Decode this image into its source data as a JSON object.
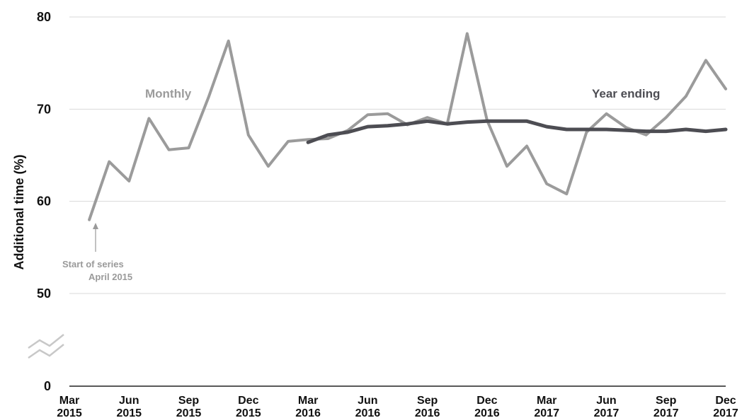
{
  "chart_data": {
    "type": "line",
    "ylabel": "Additional time (%)",
    "ylim": [
      0,
      80
    ],
    "y_axis_break": [
      0,
      50
    ],
    "y_ticks": [
      "0",
      "50",
      "60",
      "70",
      "80"
    ],
    "grid": true,
    "x_ticks": [
      {
        "month": "Mar",
        "year": "2015"
      },
      {
        "month": "Jun",
        "year": "2015"
      },
      {
        "month": "Sep",
        "year": "2015"
      },
      {
        "month": "Dec",
        "year": "2015"
      },
      {
        "month": "Mar",
        "year": "2016"
      },
      {
        "month": "Jun",
        "year": "2016"
      },
      {
        "month": "Sep",
        "year": "2016"
      },
      {
        "month": "Dec",
        "year": "2016"
      },
      {
        "month": "Mar",
        "year": "2017"
      },
      {
        "month": "Jun",
        "year": "2017"
      },
      {
        "month": "Sep",
        "year": "2017"
      },
      {
        "month": "Dec",
        "year": "2017"
      }
    ],
    "series": [
      {
        "name": "Monthly",
        "color": "#9b9b9b",
        "x": [
          "2015-04",
          "2015-05",
          "2015-06",
          "2015-07",
          "2015-08",
          "2015-09",
          "2015-10",
          "2015-11",
          "2015-12",
          "2016-01",
          "2016-02",
          "2016-03",
          "2016-04",
          "2016-05",
          "2016-06",
          "2016-07",
          "2016-08",
          "2016-09",
          "2016-10",
          "2016-11",
          "2016-12",
          "2017-01",
          "2017-02",
          "2017-03",
          "2017-04",
          "2017-05",
          "2017-06",
          "2017-07",
          "2017-08",
          "2017-09",
          "2017-10",
          "2017-11",
          "2017-12"
        ],
        "values": [
          58.0,
          64.3,
          62.2,
          69.0,
          65.6,
          65.8,
          71.3,
          77.4,
          67.2,
          63.8,
          66.5,
          66.7,
          66.8,
          67.7,
          69.4,
          69.5,
          68.3,
          69.1,
          68.4,
          78.2,
          68.8,
          63.8,
          66.0,
          61.9,
          60.8,
          67.5,
          69.5,
          68.0,
          67.2,
          69.1,
          71.4,
          75.3,
          72.2
        ]
      },
      {
        "name": "Year ending",
        "color": "#4d4d53",
        "x": [
          "2016-03",
          "2016-04",
          "2016-05",
          "2016-06",
          "2016-07",
          "2016-08",
          "2016-09",
          "2016-10",
          "2016-11",
          "2016-12",
          "2017-01",
          "2017-02",
          "2017-03",
          "2017-04",
          "2017-05",
          "2017-06",
          "2017-07",
          "2017-08",
          "2017-09",
          "2017-10",
          "2017-11",
          "2017-12"
        ],
        "values": [
          66.4,
          67.2,
          67.5,
          68.1,
          68.2,
          68.4,
          68.7,
          68.4,
          68.6,
          68.7,
          68.7,
          68.7,
          68.1,
          67.8,
          67.8,
          67.8,
          67.7,
          67.6,
          67.6,
          67.8,
          67.6,
          67.8
        ]
      }
    ],
    "annotations": {
      "start_note_line1": "Start of series",
      "start_note_line2": "April 2015"
    }
  }
}
